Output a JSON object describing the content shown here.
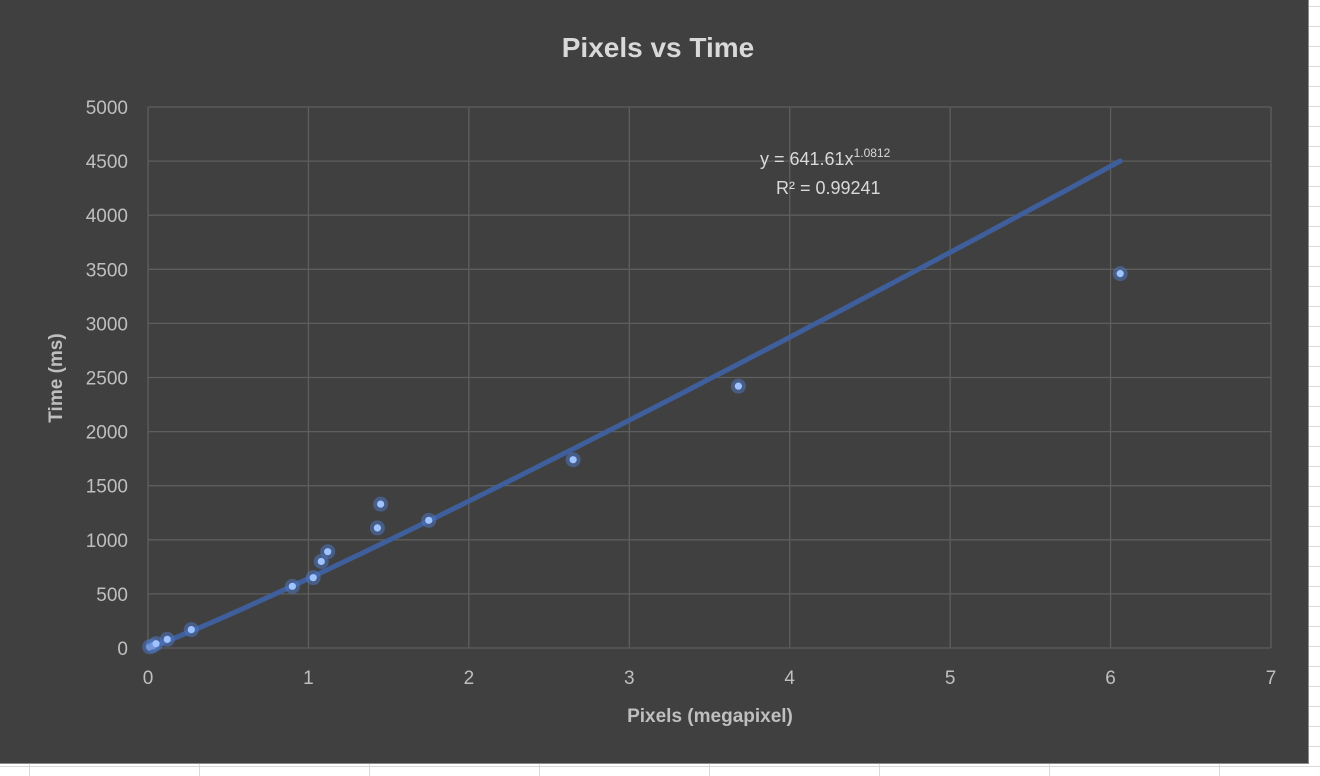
{
  "chart_data": {
    "type": "scatter",
    "title": "Pixels vs Time",
    "xlabel": "Pixels  (megapixel)",
    "ylabel": "Time (ms)",
    "xlim": [
      0,
      7
    ],
    "ylim": [
      0,
      5000
    ],
    "x_ticks": [
      "0",
      "1",
      "2",
      "3",
      "4",
      "5",
      "6",
      "7"
    ],
    "y_ticks": [
      "0",
      "500",
      "1000",
      "1500",
      "2000",
      "2500",
      "3000",
      "3500",
      "4000",
      "4500",
      "5000"
    ],
    "grid": true,
    "legend": "none",
    "series": [
      {
        "x": [
          0.01,
          0.03,
          0.05,
          0.12,
          0.27,
          0.9,
          1.03,
          1.08,
          1.12,
          1.43,
          1.45,
          1.75,
          2.65,
          3.68,
          6.06
        ],
        "y": [
          10,
          20,
          40,
          80,
          170,
          570,
          650,
          800,
          890,
          1110,
          1330,
          1180,
          1740,
          2420,
          3460
        ],
        "color": "#9ec3ff"
      }
    ],
    "trendline": {
      "type": "power",
      "coefficient": 641.61,
      "exponent": 1.0812,
      "x_range": [
        0.01,
        6.06
      ],
      "color": "#3f5f9c",
      "equation_prefix": "y = 641.61x",
      "equation_exponent": "1.0812",
      "r_squared_label": "R² = 0.99241"
    }
  }
}
